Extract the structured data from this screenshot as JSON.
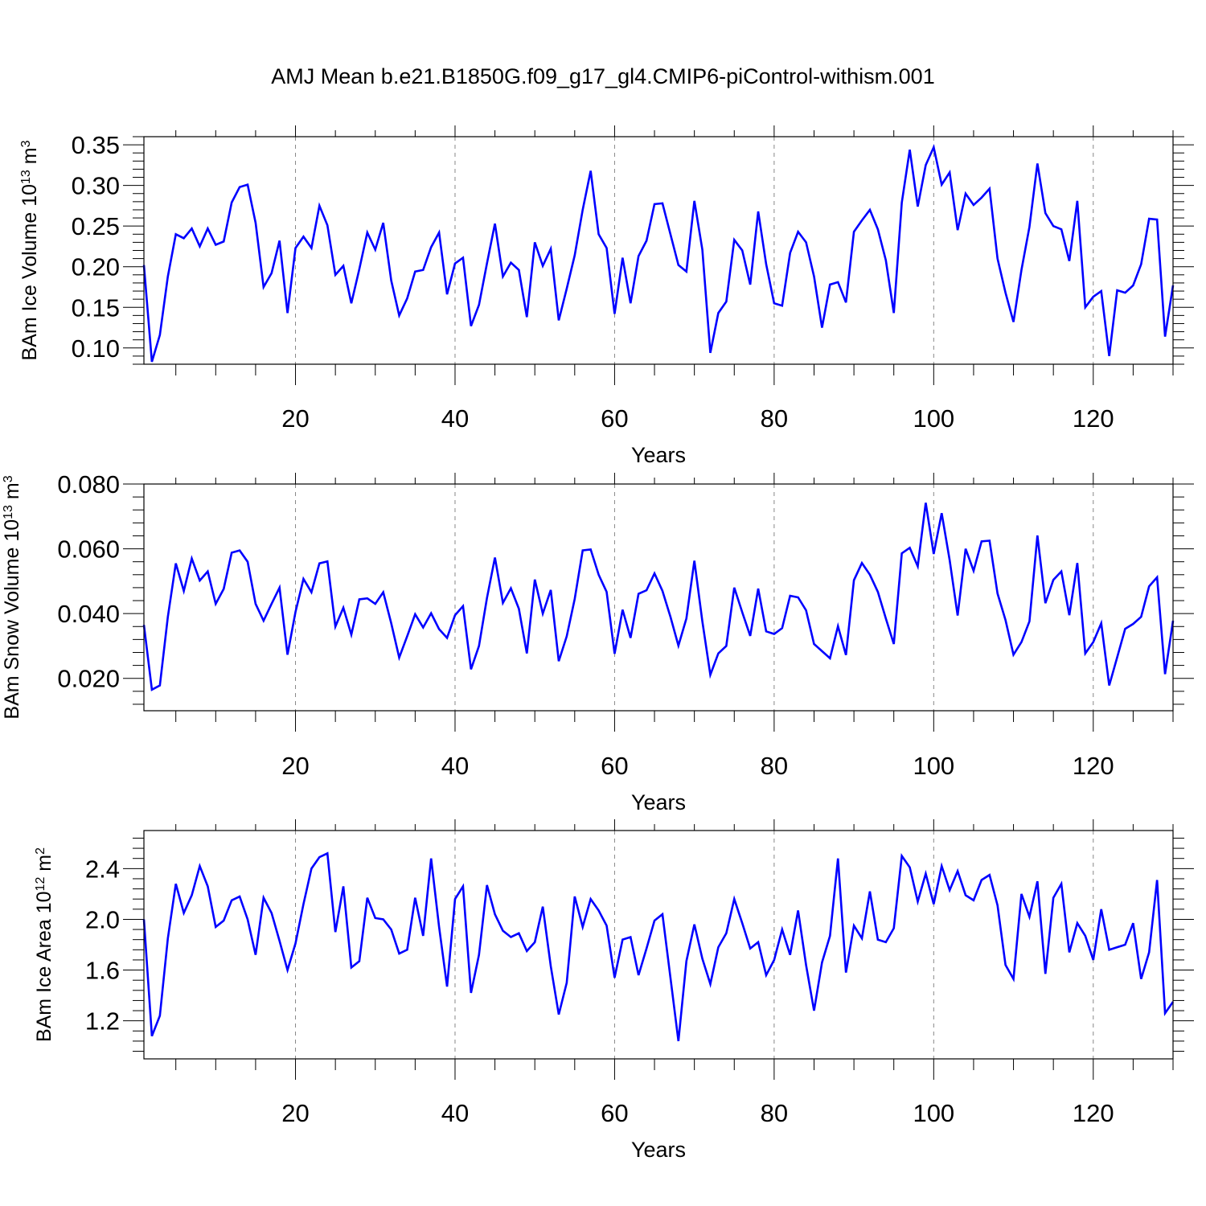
{
  "figure": {
    "title": "AMJ Mean b.e21.B1850G.f09_g17_gl4.CMIP6-piControl-withism.001"
  },
  "chart_data": [
    {
      "type": "line",
      "id": "ice-volume",
      "title": "AMJ Mean b.e21.B1850G.f09_g17_gl4.CMIP6-piControl-withism.001",
      "ylabel": {
        "base": "BAm Ice Volume 10",
        "exp": "13",
        "unit": " m",
        "unit_exp": "3"
      },
      "xlabel": "Years",
      "xlim": [
        1,
        130
      ],
      "ylim": [
        0.08,
        0.36
      ],
      "xticks": [
        20,
        40,
        60,
        80,
        100,
        120
      ],
      "xtick_labels": [
        "20",
        "40",
        "60",
        "80",
        "100",
        "120"
      ],
      "yticks": [
        0.1,
        0.15,
        0.2,
        0.25,
        0.3,
        0.35
      ],
      "ytick_labels": [
        "0.10",
        "0.15",
        "0.20",
        "0.25",
        "0.30",
        "0.35"
      ],
      "grid": "vertical dashed at major x ticks",
      "series": [
        {
          "name": "BAm Ice Volume",
          "color": "#0000ff",
          "values": [
            0.202,
            0.083,
            0.116,
            0.188,
            0.24,
            0.235,
            0.247,
            0.225,
            0.247,
            0.227,
            0.231,
            0.279,
            0.298,
            0.301,
            0.254,
            0.175,
            0.192,
            0.232,
            0.143,
            0.223,
            0.237,
            0.223,
            0.275,
            0.251,
            0.19,
            0.201,
            0.155,
            0.197,
            0.242,
            0.221,
            0.254,
            0.183,
            0.14,
            0.161,
            0.194,
            0.196,
            0.224,
            0.242,
            0.166,
            0.204,
            0.211,
            0.127,
            0.153,
            0.204,
            0.253,
            0.188,
            0.205,
            0.196,
            0.138,
            0.23,
            0.201,
            0.222,
            0.134,
            0.173,
            0.214,
            0.27,
            0.318,
            0.24,
            0.223,
            0.142,
            0.211,
            0.155,
            0.213,
            0.232,
            0.277,
            0.278,
            0.24,
            0.202,
            0.194,
            0.281,
            0.221,
            0.094,
            0.143,
            0.157,
            0.233,
            0.22,
            0.178,
            0.268,
            0.203,
            0.155,
            0.152,
            0.217,
            0.243,
            0.23,
            0.188,
            0.125,
            0.178,
            0.181,
            0.156,
            0.243,
            0.257,
            0.27,
            0.246,
            0.208,
            0.143,
            0.279,
            0.344,
            0.274,
            0.325,
            0.347,
            0.301,
            0.316,
            0.245,
            0.29,
            0.276,
            0.285,
            0.296,
            0.21,
            0.168,
            0.132,
            0.196,
            0.249,
            0.327,
            0.266,
            0.25,
            0.246,
            0.207,
            0.281,
            0.15,
            0.163,
            0.17,
            0.09,
            0.171,
            0.168,
            0.177,
            0.203,
            0.259,
            0.258,
            0.114,
            0.177
          ]
        }
      ]
    },
    {
      "type": "line",
      "id": "snow-volume",
      "ylabel": {
        "base": "BAm Snow Volume 10",
        "exp": "13",
        "unit": " m",
        "unit_exp": "3"
      },
      "xlabel": "Years",
      "xlim": [
        1,
        130
      ],
      "ylim": [
        0.01,
        0.08
      ],
      "xticks": [
        20,
        40,
        60,
        80,
        100,
        120
      ],
      "xtick_labels": [
        "20",
        "40",
        "60",
        "80",
        "100",
        "120"
      ],
      "yticks": [
        0.02,
        0.04,
        0.06,
        0.08
      ],
      "ytick_labels": [
        "0.020",
        "0.040",
        "0.060",
        "0.080"
      ],
      "grid": "vertical dashed at major x ticks",
      "series": [
        {
          "name": "BAm Snow Volume",
          "color": "#0000ff",
          "values": [
            0.0365,
            0.0165,
            0.0178,
            0.039,
            0.0555,
            0.047,
            0.057,
            0.0502,
            0.053,
            0.043,
            0.0476,
            0.0588,
            0.0595,
            0.056,
            0.043,
            0.0378,
            0.043,
            0.048,
            0.0273,
            0.0405,
            0.0507,
            0.0466,
            0.0555,
            0.0561,
            0.036,
            0.0418,
            0.0335,
            0.0444,
            0.0447,
            0.043,
            0.0466,
            0.037,
            0.0264,
            0.033,
            0.0398,
            0.0357,
            0.0401,
            0.0352,
            0.0325,
            0.0395,
            0.0423,
            0.0228,
            0.03,
            0.0448,
            0.0573,
            0.0433,
            0.0478,
            0.0415,
            0.0277,
            0.0505,
            0.04,
            0.0473,
            0.0253,
            0.033,
            0.0445,
            0.0595,
            0.0598,
            0.052,
            0.0467,
            0.0276,
            0.0412,
            0.0325,
            0.0461,
            0.0472,
            0.0524,
            0.047,
            0.039,
            0.0301,
            0.0385,
            0.0563,
            0.0376,
            0.0211,
            0.0277,
            0.03,
            0.048,
            0.0404,
            0.0331,
            0.0477,
            0.0345,
            0.0337,
            0.0355,
            0.0455,
            0.045,
            0.041,
            0.0306,
            0.0284,
            0.0262,
            0.0361,
            0.0272,
            0.0503,
            0.0556,
            0.052,
            0.0467,
            0.0385,
            0.0306,
            0.0586,
            0.0603,
            0.0546,
            0.0742,
            0.0584,
            0.071,
            0.0565,
            0.0394,
            0.06,
            0.0532,
            0.0623,
            0.0625,
            0.0462,
            0.038,
            0.0273,
            0.0312,
            0.0376,
            0.0641,
            0.0432,
            0.0504,
            0.053,
            0.0395,
            0.0556,
            0.0277,
            0.0312,
            0.037,
            0.0178,
            0.0265,
            0.0353,
            0.0368,
            0.039,
            0.0484,
            0.0512,
            0.0213,
            0.0378
          ]
        }
      ]
    },
    {
      "type": "line",
      "id": "ice-area",
      "ylabel": {
        "base": "BAm Ice Area 10",
        "exp": "12",
        "unit": " m",
        "unit_exp": "2"
      },
      "xlabel": "Years",
      "xlim": [
        1,
        130
      ],
      "ylim": [
        0.9,
        2.7
      ],
      "xticks": [
        20,
        40,
        60,
        80,
        100,
        120
      ],
      "xtick_labels": [
        "20",
        "40",
        "60",
        "80",
        "100",
        "120"
      ],
      "yticks": [
        1.2,
        1.6,
        2.0,
        2.4
      ],
      "ytick_labels": [
        "1.2",
        "1.6",
        "2.0",
        "2.4"
      ],
      "grid": "vertical dashed at major x ticks",
      "series": [
        {
          "name": "BAm Ice Area",
          "color": "#0000ff",
          "values": [
            2.0,
            1.08,
            1.24,
            1.85,
            2.28,
            2.05,
            2.19,
            2.42,
            2.26,
            1.94,
            1.99,
            2.15,
            2.18,
            2.0,
            1.72,
            2.17,
            2.05,
            1.83,
            1.6,
            1.81,
            2.12,
            2.4,
            2.49,
            2.52,
            1.9,
            2.26,
            1.62,
            1.67,
            2.17,
            2.01,
            2.0,
            1.92,
            1.73,
            1.76,
            2.17,
            1.87,
            2.48,
            1.94,
            1.47,
            2.16,
            2.26,
            1.42,
            1.72,
            2.27,
            2.04,
            1.91,
            1.86,
            1.89,
            1.75,
            1.82,
            2.1,
            1.63,
            1.25,
            1.5,
            2.18,
            1.94,
            2.16,
            2.07,
            1.95,
            1.54,
            1.84,
            1.86,
            1.56,
            1.77,
            1.99,
            2.04,
            1.54,
            1.04,
            1.67,
            1.96,
            1.69,
            1.49,
            1.78,
            1.89,
            2.16,
            1.97,
            1.77,
            1.82,
            1.56,
            1.68,
            1.92,
            1.72,
            2.07,
            1.64,
            1.28,
            1.66,
            1.87,
            2.48,
            1.58,
            1.95,
            1.85,
            2.22,
            1.84,
            1.82,
            1.93,
            2.5,
            2.41,
            2.14,
            2.36,
            2.12,
            2.42,
            2.23,
            2.38,
            2.19,
            2.15,
            2.31,
            2.35,
            2.11,
            1.64,
            1.53,
            2.2,
            2.02,
            2.3,
            1.57,
            2.17,
            2.28,
            1.74,
            1.97,
            1.87,
            1.68,
            2.08,
            1.76,
            1.78,
            1.8,
            1.97,
            1.53,
            1.74,
            2.31,
            1.26,
            1.35
          ]
        }
      ]
    }
  ]
}
